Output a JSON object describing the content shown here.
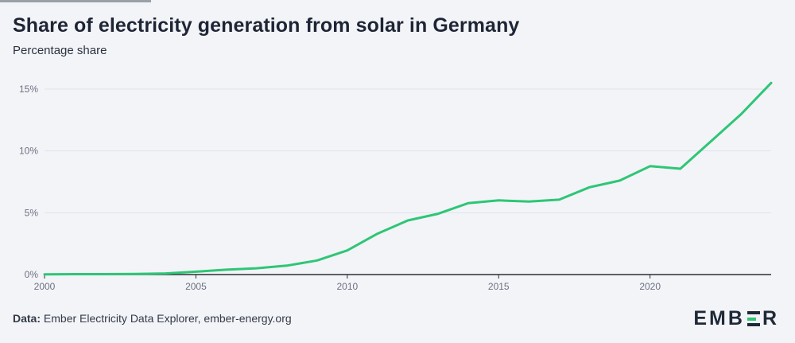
{
  "header": {
    "title": "Share of electricity generation from solar in Germany",
    "subtitle": "Percentage share"
  },
  "footer": {
    "source_label": "Data:",
    "source_text": "Ember Electricity Data Explorer, ember-energy.org"
  },
  "logo": {
    "left": "EMB",
    "right": "R",
    "icon": "ember-e-logo-icon"
  },
  "colors": {
    "line": "#2ec676",
    "grid": "#dfe2ea",
    "axis": "#2b2f36",
    "background": "#f3f4f8"
  },
  "chart_data": {
    "type": "line",
    "title": "Share of electricity generation from solar in Germany",
    "subtitle": "Percentage share",
    "xlabel": "",
    "ylabel": "",
    "xlim": [
      2000,
      2024
    ],
    "ylim": [
      0,
      15
    ],
    "grid": true,
    "xticks": [
      2000,
      2005,
      2010,
      2015,
      2020
    ],
    "xtick_labels": [
      "2000",
      "2005",
      "2010",
      "2015",
      "2020"
    ],
    "yticks": [
      0,
      5,
      10,
      15
    ],
    "ytick_labels": [
      "0%",
      "5%",
      "10%",
      "15%"
    ],
    "series": [
      {
        "name": "Solar share",
        "x": [
          2000,
          2001,
          2002,
          2003,
          2004,
          2005,
          2006,
          2007,
          2008,
          2009,
          2010,
          2011,
          2012,
          2013,
          2014,
          2015,
          2016,
          2017,
          2018,
          2019,
          2020,
          2021,
          2022,
          2023,
          2024
        ],
        "values": [
          0.01,
          0.03,
          0.03,
          0.05,
          0.09,
          0.23,
          0.39,
          0.51,
          0.72,
          1.14,
          1.95,
          3.31,
          4.38,
          4.92,
          5.78,
          6.0,
          5.91,
          6.06,
          7.06,
          7.6,
          8.77,
          8.56,
          10.75,
          12.95,
          15.5
        ]
      }
    ]
  }
}
